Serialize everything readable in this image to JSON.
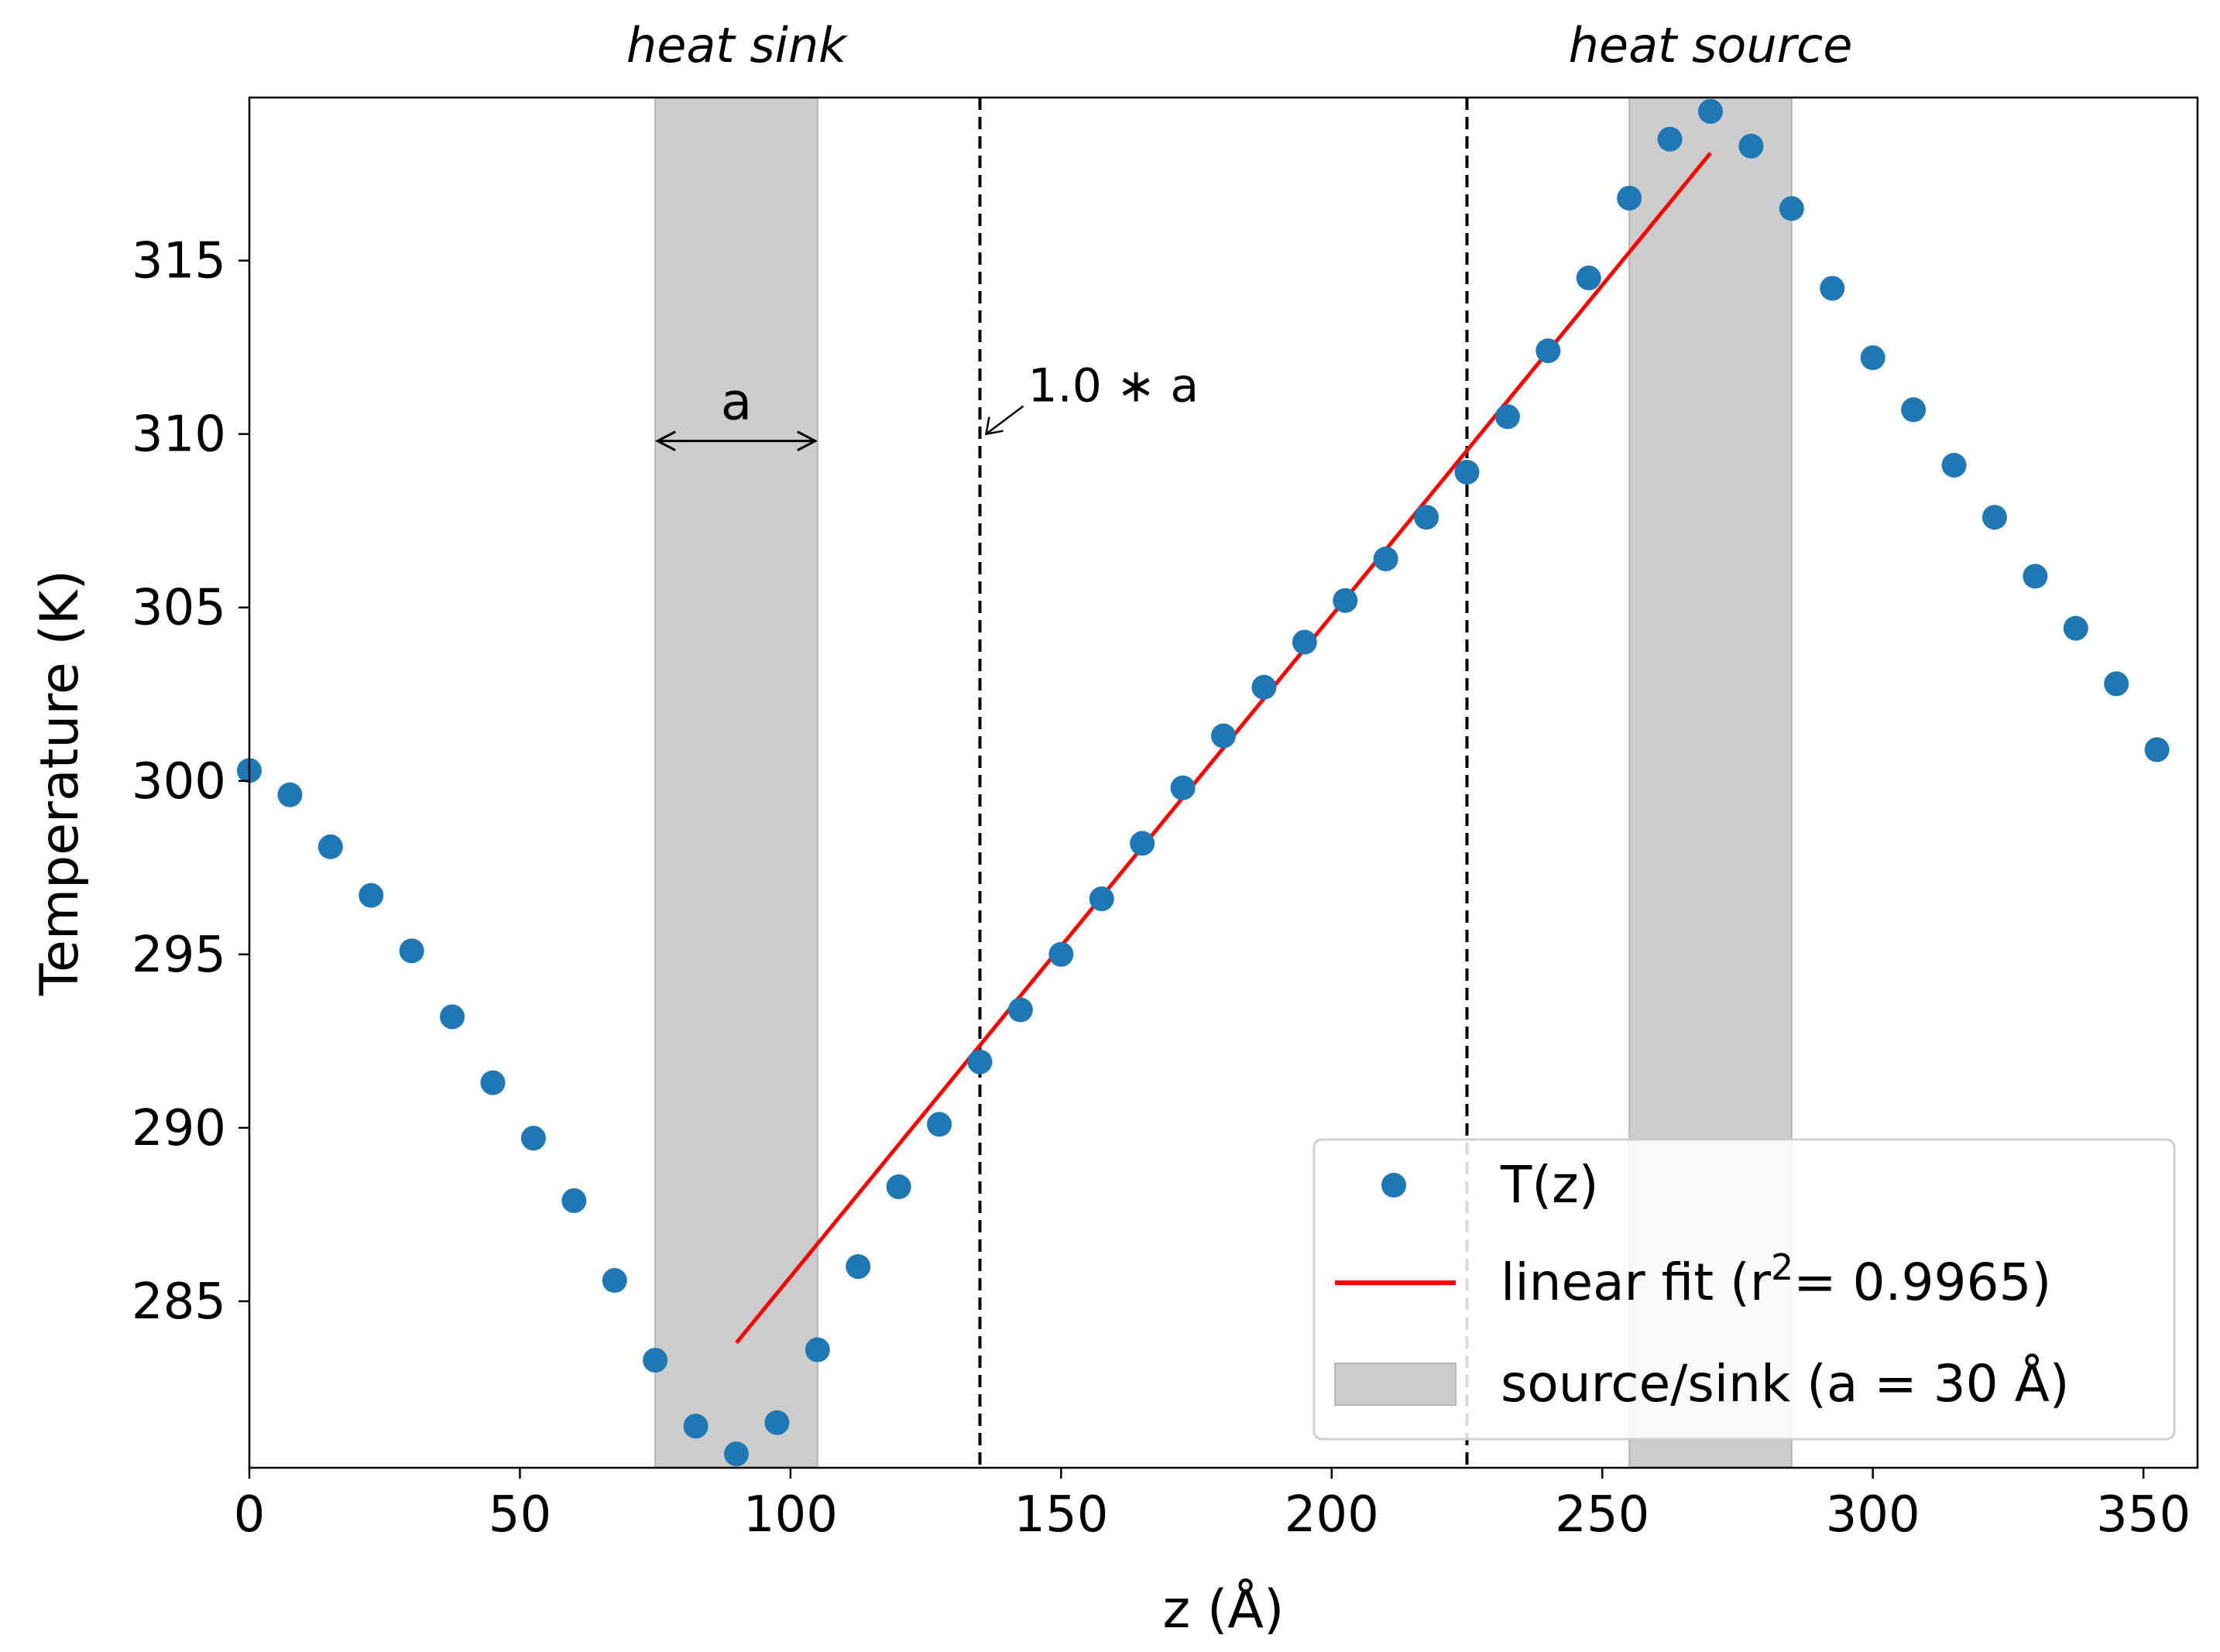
{
  "chart_data": {
    "type": "scatter",
    "xlabel": "z (Å)",
    "ylabel": "Temperature (K)",
    "xlim": [
      0,
      360
    ],
    "ylim": [
      280.2,
      319.7
    ],
    "xticks": [
      0,
      50,
      100,
      150,
      200,
      250,
      300,
      350
    ],
    "yticks": [
      285,
      290,
      295,
      300,
      305,
      310,
      315
    ],
    "xtick_labels": [
      "0",
      "50",
      "100",
      "150",
      "200",
      "250",
      "300",
      "350"
    ],
    "ytick_labels": [
      "285",
      "290",
      "295",
      "300",
      "305",
      "310",
      "315"
    ],
    "grid": false,
    "series": [
      {
        "name": "T(z)",
        "kind": "scatter",
        "color": "#1f77b4",
        "x": [
          0,
          7.5,
          15,
          22.5,
          30,
          37.5,
          45,
          52.5,
          60,
          67.5,
          75,
          82.5,
          90,
          97.5,
          105,
          112.5,
          120,
          127.5,
          135,
          142.5,
          150,
          157.5,
          165,
          172.5,
          180,
          187.5,
          195,
          202.5,
          210,
          217.5,
          225,
          232.5,
          240,
          247.5,
          255,
          262.5,
          270,
          277.5,
          285,
          292.5,
          300,
          307.5,
          315,
          322.5,
          330,
          337.5,
          345,
          352.5
        ],
        "y": [
          300.3,
          299.6,
          298.1,
          296.7,
          295.1,
          293.2,
          291.3,
          289.7,
          287.9,
          285.6,
          283.3,
          281.4,
          280.6,
          281.5,
          283.6,
          286.0,
          288.3,
          290.1,
          291.9,
          293.4,
          295.0,
          296.6,
          298.2,
          299.8,
          301.3,
          302.7,
          304.0,
          305.2,
          306.4,
          307.6,
          308.9,
          310.5,
          312.4,
          314.5,
          316.8,
          318.5,
          319.3,
          318.3,
          316.5,
          314.2,
          312.2,
          310.7,
          309.1,
          307.6,
          305.9,
          304.4,
          302.8,
          300.9
        ]
      },
      {
        "name": "linear fit (r²= 0.9965)",
        "kind": "line",
        "color": "#ff0000",
        "x": [
          90,
          270
        ],
        "y": [
          283.8,
          318.1
        ]
      }
    ],
    "shaded_regions": [
      {
        "name": "heat sink",
        "x_range": [
          75,
          105
        ],
        "color": "#cccccc"
      },
      {
        "name": "heat source",
        "x_range": [
          255,
          285
        ],
        "color": "#cccccc"
      }
    ],
    "vertical_lines": [
      {
        "x": 135,
        "style": "dashed",
        "color": "#000000"
      },
      {
        "x": 225,
        "style": "dashed",
        "color": "#000000"
      }
    ],
    "annotations": {
      "top_labels": [
        {
          "text": "heat sink",
          "x": 90
        },
        {
          "text": "heat source",
          "x": 270
        }
      ],
      "width_arrow": {
        "label": "a",
        "x_from": 75,
        "x_to": 105,
        "y": 309.8
      },
      "offset_arrow": {
        "label": "1.0 ∗ a",
        "x": 135,
        "y": 310
      }
    },
    "legend": {
      "placement": "lower-right",
      "entries": [
        {
          "label": "T(z)",
          "kind": "marker"
        },
        {
          "label_main": "linear fit (r",
          "label_sup": "2",
          "label_rest": "= 0.9965)",
          "kind": "line"
        },
        {
          "label": "source/sink (a = 30 Å)",
          "kind": "patch"
        }
      ]
    }
  }
}
